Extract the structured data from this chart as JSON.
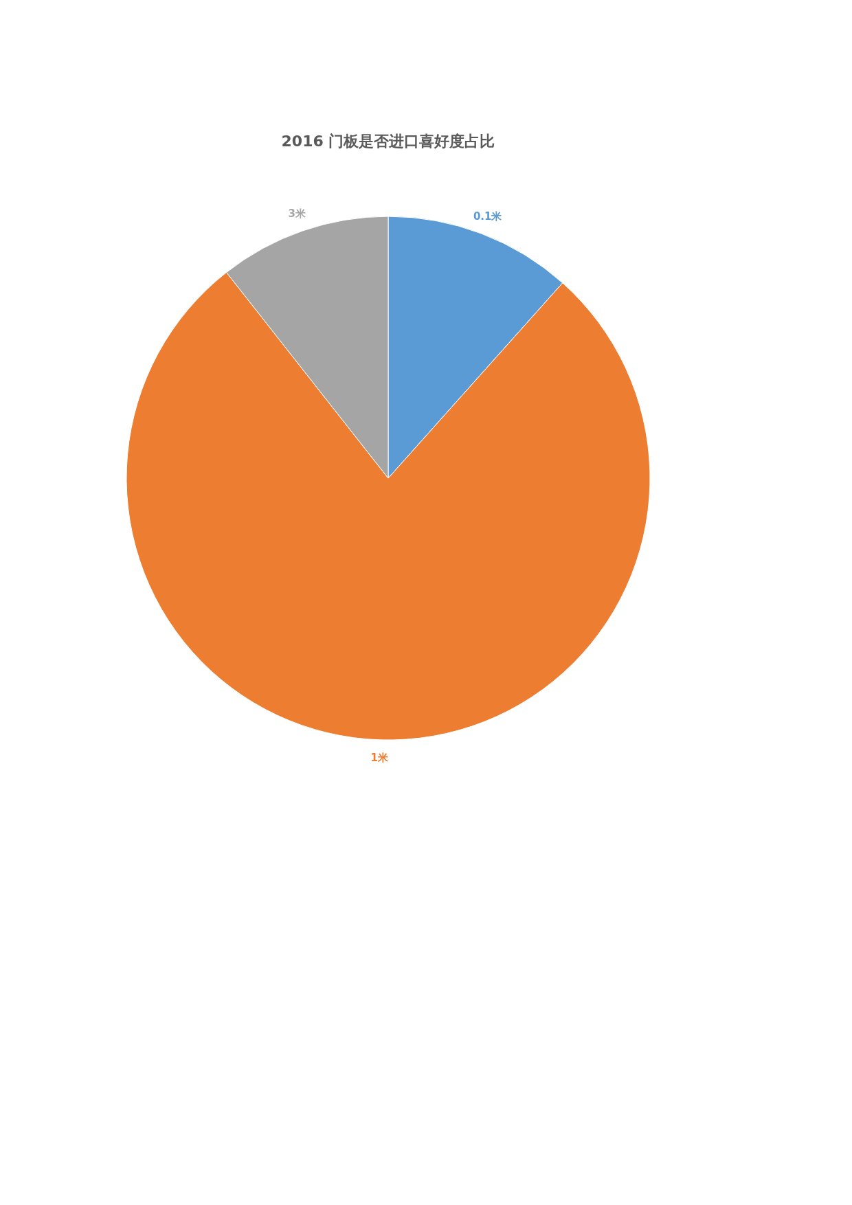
{
  "chart_data": {
    "type": "pie",
    "title": "2016 门板是否进口喜好度占比",
    "categories": [
      "0.1米",
      "1米",
      "3米"
    ],
    "values": [
      11.6,
      77.8,
      10.6
    ],
    "colors": [
      "#5b9bd5",
      "#ed7d31",
      "#a5a5a5"
    ]
  }
}
